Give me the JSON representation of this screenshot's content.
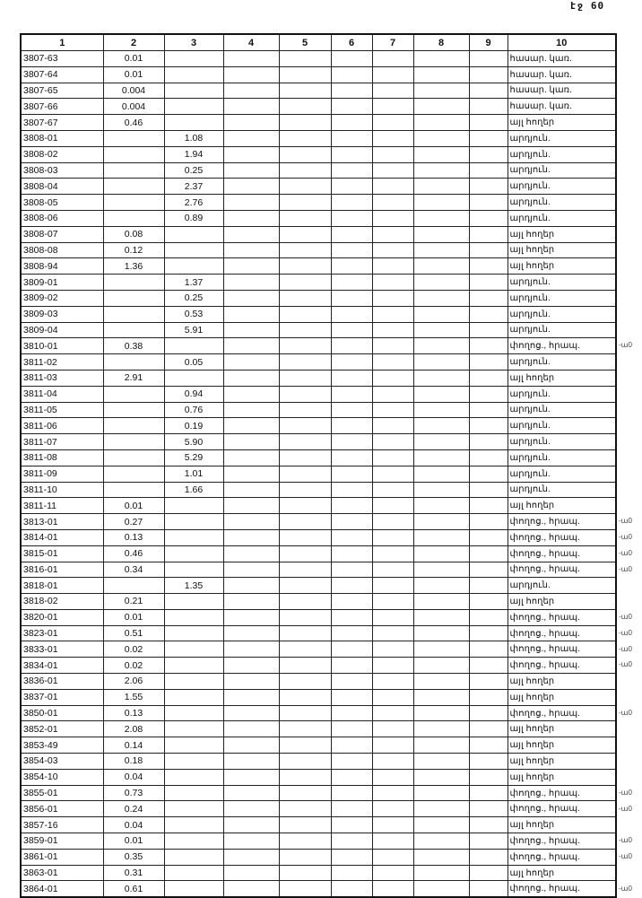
{
  "page_number": "էջ 60",
  "headers": [
    "1",
    "2",
    "3",
    "4",
    "5",
    "6",
    "7",
    "8",
    "9",
    "10"
  ],
  "rows": [
    [
      "3807-63",
      "0.01",
      "",
      "հասար. կառ."
    ],
    [
      "3807-64",
      "0.01",
      "",
      "հասար. կառ."
    ],
    [
      "3807-65",
      "0.004",
      "",
      "հասար. կառ."
    ],
    [
      "3807-66",
      "0.004",
      "",
      "հասար. կառ."
    ],
    [
      "3807-67",
      "0.46",
      "",
      "այլ հողեր"
    ],
    [
      "3808-01",
      "",
      "1.08",
      "արդյուն."
    ],
    [
      "3808-02",
      "",
      "1.94",
      "արդյուն."
    ],
    [
      "3808-03",
      "",
      "0.25",
      "արդյուն."
    ],
    [
      "3808-04",
      "",
      "2.37",
      "արդյուն."
    ],
    [
      "3808-05",
      "",
      "2.76",
      "արդյուն."
    ],
    [
      "3808-06",
      "",
      "0.89",
      "արդյուն."
    ],
    [
      "3808-07",
      "0.08",
      "",
      "այլ հողեր"
    ],
    [
      "3808-08",
      "0.12",
      "",
      "այլ հողեր"
    ],
    [
      "3808-94",
      "1.36",
      "",
      "այլ հողեր"
    ],
    [
      "3809-01",
      "",
      "1.37",
      "արդյուն."
    ],
    [
      "3809-02",
      "",
      "0.25",
      "արդյուն."
    ],
    [
      "3809-03",
      "",
      "0.53",
      "արդյուն."
    ],
    [
      "3809-04",
      "",
      "5.91",
      "արդյուն."
    ],
    [
      "3810-01",
      "0.38",
      "",
      "փողոց., հրապ."
    ],
    [
      "3811-02",
      "",
      "0.05",
      "արդյուն."
    ],
    [
      "3811-03",
      "2.91",
      "",
      "այլ հողեր"
    ],
    [
      "3811-04",
      "",
      "0.94",
      "արդյուն."
    ],
    [
      "3811-05",
      "",
      "0.76",
      "արդյուն."
    ],
    [
      "3811-06",
      "",
      "0.19",
      "արդյուն."
    ],
    [
      "3811-07",
      "",
      "5.90",
      "արդյուն."
    ],
    [
      "3811-08",
      "",
      "5.29",
      "արդյուն."
    ],
    [
      "3811-09",
      "",
      "1.01",
      "արդյուն."
    ],
    [
      "3811-10",
      "",
      "1.66",
      "արդյուն."
    ],
    [
      "3811-11",
      "0.01",
      "",
      "այլ հողեր"
    ],
    [
      "3813-01",
      "0.27",
      "",
      "փողոց., հրապ."
    ],
    [
      "3814-01",
      "0.13",
      "",
      "փողոց., հրապ."
    ],
    [
      "3815-01",
      "0.46",
      "",
      "փողոց., հրապ."
    ],
    [
      "3816-01",
      "0.34",
      "",
      "փողոց., հրապ."
    ],
    [
      "3818-01",
      "",
      "1.35",
      "արդյուն."
    ],
    [
      "3818-02",
      "0.21",
      "",
      "այլ հողեր"
    ],
    [
      "3820-01",
      "0.01",
      "",
      "փողոց., հրապ."
    ],
    [
      "3823-01",
      "0.51",
      "",
      "փողոց., հրապ."
    ],
    [
      "3833-01",
      "0.02",
      "",
      "փողոց., հրապ."
    ],
    [
      "3834-01",
      "0.02",
      "",
      "փողոց., հրապ."
    ],
    [
      "3836-01",
      "2.06",
      "",
      "այլ հողեր"
    ],
    [
      "3837-01",
      "1.55",
      "",
      "այլ հողեր"
    ],
    [
      "3850-01",
      "0.13",
      "",
      "փողոց., հրապ."
    ],
    [
      "3852-01",
      "2.08",
      "",
      "այլ հողեր"
    ],
    [
      "3853-49",
      "0.14",
      "",
      "այլ հողեր"
    ],
    [
      "3854-03",
      "0.18",
      "",
      "այլ հողեր"
    ],
    [
      "3854-10",
      "0.04",
      "",
      "այլ հողեր"
    ],
    [
      "3855-01",
      "0.73",
      "",
      "փողոց., հրապ."
    ],
    [
      "3856-01",
      "0.24",
      "",
      "փողոց., հրապ."
    ],
    [
      "3857-16",
      "0.04",
      "",
      "այլ հողեր"
    ],
    [
      "3859-01",
      "0.01",
      "",
      "փողոց., հրապ."
    ],
    [
      "3861-01",
      "0.35",
      "",
      "փողոց., հրապ."
    ],
    [
      "3863-01",
      "0.31",
      "",
      "այլ հողեր"
    ],
    [
      "3864-01",
      "0.61",
      "",
      "փողոց., հրապ."
    ]
  ],
  "margin_mark": "-ա0"
}
